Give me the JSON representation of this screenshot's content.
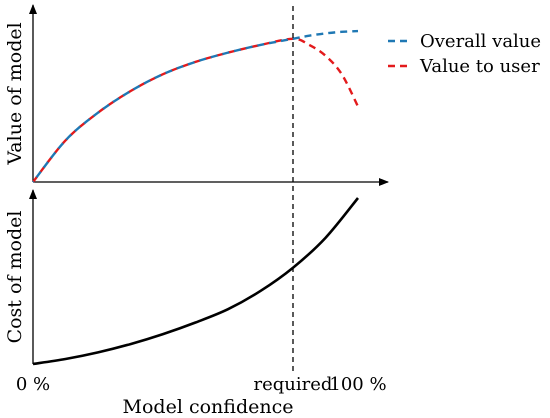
{
  "colors": {
    "axis": "#000000",
    "overall_value": "#1f78b4",
    "value_to_user": "#e31a1c",
    "cost": "#000000",
    "required_marker": "#000000"
  },
  "chart_data": [
    {
      "type": "line",
      "title": "",
      "xlabel": "",
      "ylabel": "Value of model",
      "xlim": [
        0,
        100
      ],
      "ylim": [
        0,
        100
      ],
      "grid": false,
      "legend_position": "top-right",
      "series": [
        {
          "name": "Overall value",
          "style": "dashed",
          "x": [
            0,
            10,
            20,
            30,
            40,
            50,
            60,
            70,
            80,
            85,
            90,
            95,
            100
          ],
          "y": [
            0,
            27,
            45,
            59,
            70,
            78,
            84,
            89,
            93,
            95,
            96.5,
            97.5,
            98
          ]
        },
        {
          "name": "Value to user",
          "style": "dashed",
          "x": [
            0,
            10,
            20,
            30,
            40,
            50,
            60,
            70,
            80,
            85,
            90,
            95,
            100
          ],
          "y": [
            0,
            27,
            45,
            59,
            70,
            78,
            84,
            89,
            93,
            89,
            82,
            70,
            49
          ]
        }
      ]
    },
    {
      "type": "line",
      "title": "",
      "xlabel": "Model confidence",
      "ylabel": "Cost of model",
      "xlim": [
        0,
        100
      ],
      "ylim": [
        0,
        100
      ],
      "grid": false,
      "x_tick_labels": [
        {
          "x": 0,
          "label": "0 %"
        },
        {
          "x": 80,
          "label": "required"
        },
        {
          "x": 100,
          "label": "100 %"
        }
      ],
      "series": [
        {
          "name": "",
          "style": "solid",
          "x": [
            0,
            10,
            20,
            30,
            40,
            50,
            60,
            70,
            80,
            90,
            100
          ],
          "y": [
            0,
            3,
            7,
            12,
            18,
            25,
            33,
            44,
            58,
            76,
            100
          ]
        }
      ]
    }
  ],
  "required_marker": {
    "x": 80
  }
}
